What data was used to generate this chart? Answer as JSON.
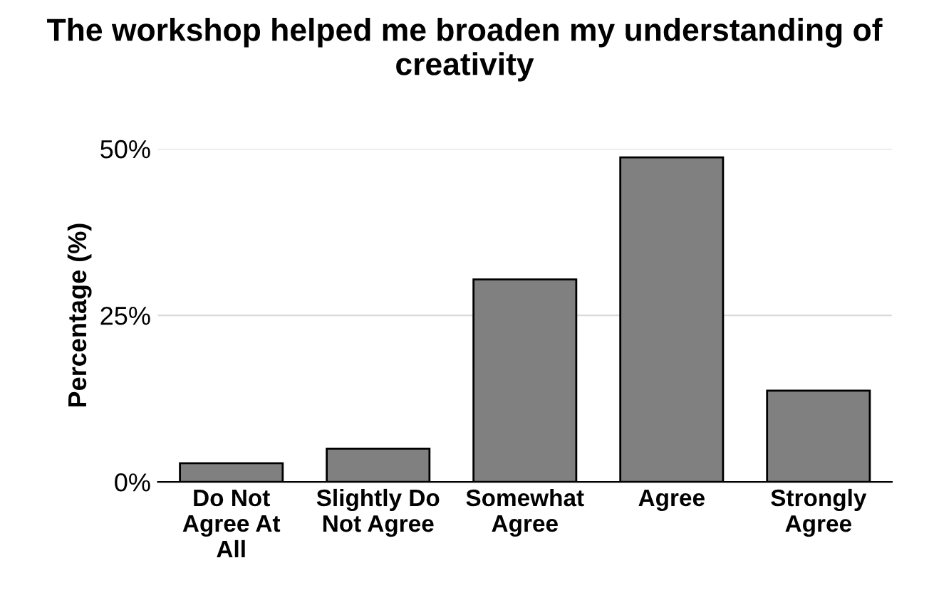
{
  "chart_data": {
    "type": "bar",
    "title": "The workshop helped me broaden my understanding of creativity",
    "ylabel": "Percentage (%)",
    "categories": [
      "Do Not Agree At All",
      "Slightly Do Not Agree",
      "Somewhat Agree",
      "Agree",
      "Strongly Agree"
    ],
    "values": [
      2.8,
      5.0,
      30.4,
      48.7,
      13.7
    ],
    "color": "#808080",
    "ylim": [
      0,
      50
    ],
    "yticks": [
      {
        "value": 0,
        "label": "0%"
      },
      {
        "value": 25,
        "label": "25%"
      },
      {
        "value": 50,
        "label": "50%"
      }
    ],
    "grid": "y"
  }
}
